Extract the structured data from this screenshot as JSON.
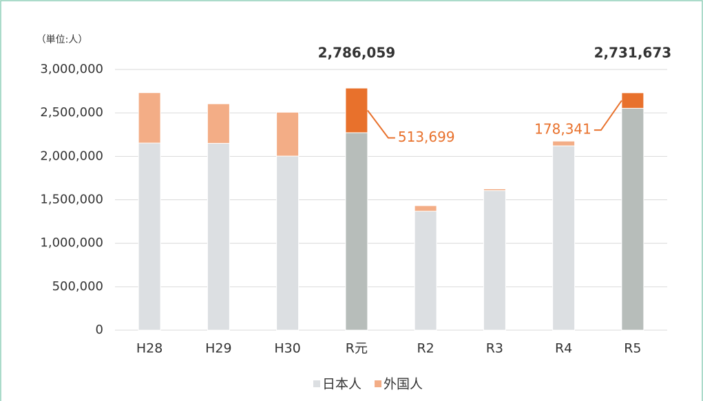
{
  "chart_data": {
    "type": "stacked_bar",
    "unit_label": "（単位:人）",
    "categories": [
      "H28",
      "H29",
      "H30",
      "R元",
      "R2",
      "R3",
      "R4",
      "R5"
    ],
    "series": [
      {
        "name": "日本人",
        "color": "#dcdfe2",
        "colors": [
          "#dcdfe2",
          "#dcdfe2",
          "#dcdfe2",
          "#b7bdba",
          "#dcdfe2",
          "#dcdfe2",
          "#dcdfe2",
          "#b7bdba"
        ],
        "values": [
          2153000,
          2150000,
          2003000,
          2272360,
          1369000,
          1607000,
          2121000,
          2553332
        ]
      },
      {
        "name": "外国人",
        "color": "#f3ad86",
        "colors": [
          "#f3ad86",
          "#f3ad86",
          "#f3ad86",
          "#e8712c",
          "#f3ad86",
          "#f3ad86",
          "#f3ad86",
          "#e8712c"
        ],
        "values": [
          580000,
          455000,
          505000,
          513699,
          64000,
          20000,
          55000,
          178341
        ],
        "value_labels": [
          null,
          null,
          null,
          "513,699",
          null,
          null,
          null,
          "178,341"
        ]
      }
    ],
    "annotations": [
      {
        "text": "2,786,059",
        "x": "R元"
      },
      {
        "text": "2,731,673",
        "x": "R5"
      }
    ],
    "ylim": [
      0,
      3000000
    ],
    "yticks": [
      0,
      {
        "value": 500000,
        "label": "500,000"
      },
      {
        "value": 1000000,
        "label": "1,000,000"
      },
      {
        "value": 1500000,
        "label": "1,500,000"
      },
      {
        "value": 2000000,
        "label": "2,000,000"
      },
      {
        "value": 2500000,
        "label": "2,500,000"
      },
      {
        "value": 3000000,
        "label": "3,000,000"
      }
    ],
    "grid": true,
    "legend": "bottom"
  }
}
